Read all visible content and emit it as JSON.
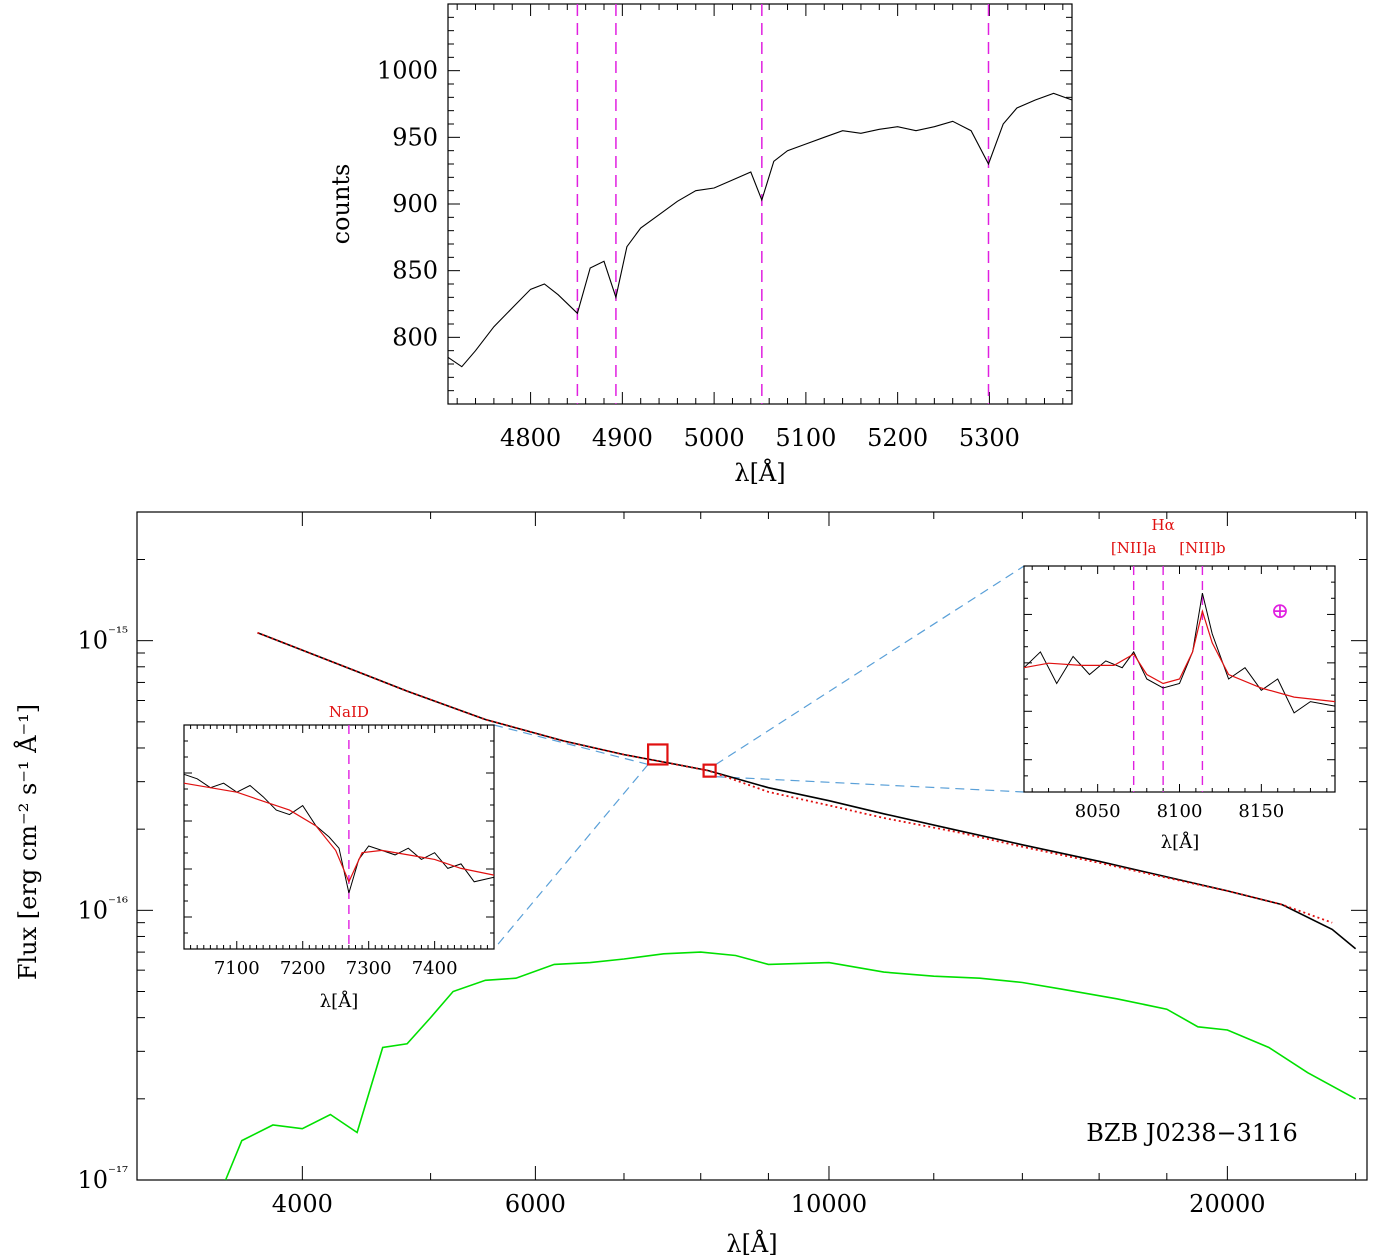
{
  "chart_data": [
    {
      "type": "line",
      "panel": "top",
      "xlabel": "λ[Å]",
      "ylabel": "counts",
      "xlim": [
        4710,
        5390
      ],
      "ylim": [
        750,
        1050
      ],
      "x_ticks": [
        4800,
        4900,
        5000,
        5100,
        5200,
        5300
      ],
      "y_ticks": [
        800,
        850,
        900,
        950,
        1000
      ],
      "vlines": [
        4851,
        4893,
        5052,
        5299
      ],
      "series": [
        {
          "color": "#000000",
          "x": [
            4710,
            4725,
            4740,
            4760,
            4780,
            4800,
            4815,
            4830,
            4851,
            4865,
            4880,
            4893,
            4905,
            4920,
            4940,
            4960,
            4980,
            5000,
            5020,
            5040,
            5052,
            5065,
            5080,
            5100,
            5120,
            5140,
            5160,
            5180,
            5200,
            5220,
            5240,
            5260,
            5280,
            5299,
            5315,
            5330,
            5350,
            5370,
            5390
          ],
          "y": [
            785,
            778,
            790,
            808,
            822,
            836,
            840,
            832,
            818,
            852,
            857,
            830,
            868,
            882,
            892,
            902,
            910,
            912,
            918,
            924,
            903,
            932,
            940,
            945,
            950,
            955,
            953,
            956,
            958,
            955,
            958,
            962,
            955,
            930,
            960,
            972,
            978,
            983,
            978
          ]
        }
      ]
    },
    {
      "type": "line",
      "panel": "bottom",
      "xlabel": "λ[Å]",
      "ylabel": "Flux [erg cm⁻² s⁻¹ Å⁻¹]",
      "xscale": "log",
      "yscale": "log",
      "xlim": [
        3000,
        25500
      ],
      "ylim": [
        1e-17,
        3e-15
      ],
      "x_ticks": [
        4000,
        6000,
        10000,
        20000
      ],
      "y_ticks": [
        "10⁻¹⁵",
        "10⁻¹⁶",
        "10⁻¹⁷"
      ],
      "annotation": "BZB J0238−3116",
      "series": [
        {
          "color": "#000000",
          "x": [
            3700,
            4200,
            4800,
            5500,
            6300,
            7000,
            7500,
            8100,
            9000,
            10000,
            11000,
            12500,
            14000,
            16000,
            18000,
            20000,
            22000,
            24000,
            25000
          ],
          "y": [
            1.07e-15,
            8.4e-16,
            6.5e-16,
            5.1e-16,
            4.25e-16,
            3.78e-16,
            3.55e-16,
            3.3e-16,
            2.85e-16,
            2.55e-16,
            2.28e-16,
            1.98e-16,
            1.75e-16,
            1.52e-16,
            1.33e-16,
            1.18e-16,
            1.05e-16,
            8.5e-17,
            7.2e-17
          ]
        },
        {
          "color": "#e01010",
          "x": [
            3700,
            4200,
            4800,
            5500,
            6300,
            7000,
            8100,
            9000,
            10000,
            11000,
            12500,
            14000,
            16000,
            18000,
            20000,
            22000,
            24000
          ],
          "y": [
            1.07e-15,
            8.4e-16,
            6.5e-16,
            5.1e-16,
            4.25e-16,
            3.78e-16,
            3.3e-16,
            2.75e-16,
            2.45e-16,
            2.2e-16,
            1.95e-16,
            1.72e-16,
            1.5e-16,
            1.32e-16,
            1.18e-16,
            1.05e-16,
            9e-17
          ]
        },
        {
          "color": "#00e000",
          "x": [
            3500,
            3600,
            3800,
            4000,
            4200,
            4400,
            4600,
            4800,
            5000,
            5200,
            5500,
            5800,
            6200,
            6600,
            7000,
            7500,
            8000,
            8500,
            9000,
            10000,
            11000,
            12000,
            13000,
            14000,
            15000,
            16500,
            18000,
            19000,
            20000,
            21500,
            23000,
            25000
          ],
          "y": [
            1e-17,
            1.4e-17,
            1.6e-17,
            1.55e-17,
            1.75e-17,
            1.5e-17,
            3.1e-17,
            3.2e-17,
            4e-17,
            5e-17,
            5.5e-17,
            5.6e-17,
            6.3e-17,
            6.4e-17,
            6.6e-17,
            6.9e-17,
            7e-17,
            6.8e-17,
            6.3e-17,
            6.4e-17,
            5.9e-17,
            5.7e-17,
            5.6e-17,
            5.4e-17,
            5.1e-17,
            4.7e-17,
            4.3e-17,
            3.7e-17,
            3.6e-17,
            3.1e-17,
            2.5e-17,
            2e-17
          ]
        }
      ],
      "zoom_boxes_x": [
        [
          7300,
          7550
        ],
        [
          8040,
          8160
        ]
      ]
    },
    {
      "type": "line",
      "panel": "inset-left",
      "xlabel": "λ[Å]",
      "xlim": [
        7020,
        7490
      ],
      "x_ticks": [
        7100,
        7200,
        7300,
        7400
      ],
      "ylim": [
        0,
        1
      ],
      "vlines": [
        7270
      ],
      "vline_labels": [
        "NaID"
      ],
      "series": [
        {
          "color": "#000000",
          "x": [
            7020,
            7040,
            7060,
            7080,
            7100,
            7120,
            7140,
            7160,
            7180,
            7200,
            7220,
            7240,
            7255,
            7270,
            7285,
            7300,
            7320,
            7340,
            7360,
            7380,
            7400,
            7420,
            7440,
            7460,
            7490
          ],
          "y": [
            0.78,
            0.76,
            0.72,
            0.74,
            0.7,
            0.73,
            0.68,
            0.62,
            0.6,
            0.64,
            0.55,
            0.5,
            0.45,
            0.25,
            0.4,
            0.46,
            0.44,
            0.42,
            0.45,
            0.4,
            0.43,
            0.36,
            0.38,
            0.3,
            0.32
          ]
        },
        {
          "color": "#e01010",
          "x": [
            7020,
            7060,
            7100,
            7140,
            7180,
            7220,
            7250,
            7270,
            7290,
            7320,
            7360,
            7400,
            7440,
            7490
          ],
          "y": [
            0.74,
            0.72,
            0.7,
            0.66,
            0.62,
            0.55,
            0.44,
            0.3,
            0.43,
            0.44,
            0.42,
            0.4,
            0.36,
            0.33
          ]
        }
      ]
    },
    {
      "type": "line",
      "panel": "inset-right",
      "xlabel": "λ[Å]",
      "xlim": [
        8005,
        8195
      ],
      "x_ticks": [
        8050,
        8100,
        8150
      ],
      "ylim": [
        0,
        1
      ],
      "vlines": [
        8072,
        8090,
        8114
      ],
      "vline_labels": [
        "[NII]a",
        "Hα",
        "[NII]b"
      ],
      "telluric_symbol": "⊕",
      "series": [
        {
          "color": "#000000",
          "x": [
            8005,
            8015,
            8025,
            8035,
            8045,
            8055,
            8065,
            8072,
            8080,
            8090,
            8100,
            8108,
            8114,
            8120,
            8130,
            8140,
            8150,
            8160,
            8170,
            8180,
            8195
          ],
          "y": [
            0.55,
            0.62,
            0.48,
            0.6,
            0.52,
            0.58,
            0.55,
            0.62,
            0.5,
            0.46,
            0.48,
            0.62,
            0.88,
            0.7,
            0.5,
            0.55,
            0.45,
            0.5,
            0.35,
            0.4,
            0.38
          ]
        },
        {
          "color": "#e01010",
          "x": [
            8005,
            8020,
            8040,
            8060,
            8072,
            8080,
            8090,
            8100,
            8108,
            8114,
            8120,
            8130,
            8150,
            8170,
            8195
          ],
          "y": [
            0.55,
            0.57,
            0.56,
            0.56,
            0.61,
            0.52,
            0.48,
            0.5,
            0.62,
            0.8,
            0.66,
            0.52,
            0.46,
            0.42,
            0.4
          ]
        }
      ]
    }
  ]
}
